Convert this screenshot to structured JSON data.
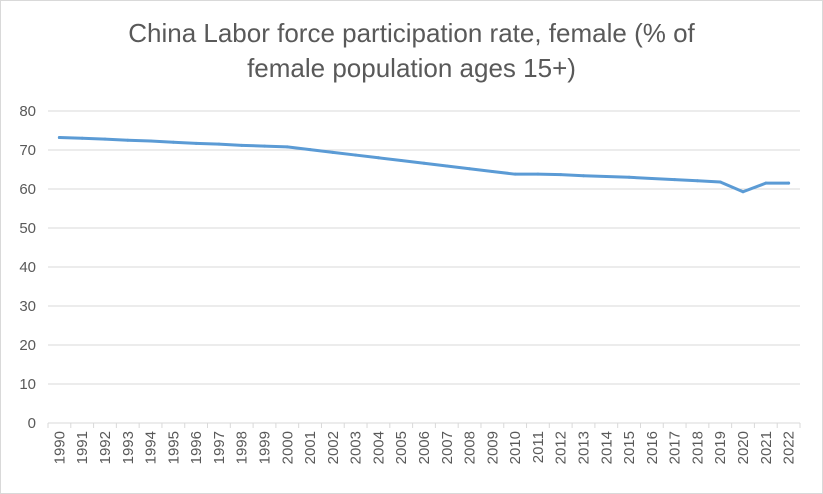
{
  "chart_data": {
    "type": "line",
    "title": "China Labor force participation rate, female (% of female population ages 15+)",
    "title_lines": [
      "China Labor force participation rate, female (% of",
      "female population ages 15+)"
    ],
    "xlabel": "",
    "ylabel": "",
    "ylim": [
      0,
      80
    ],
    "yticks": [
      0,
      10,
      20,
      30,
      40,
      50,
      60,
      70,
      80
    ],
    "grid": true,
    "legend": "none",
    "categories": [
      "1990",
      "1991",
      "1992",
      "1993",
      "1994",
      "1995",
      "1996",
      "1997",
      "1998",
      "1999",
      "2000",
      "2001",
      "2002",
      "2003",
      "2004",
      "2005",
      "2006",
      "2007",
      "2008",
      "2009",
      "2010",
      "2011",
      "2012",
      "2013",
      "2014",
      "2015",
      "2016",
      "2017",
      "2018",
      "2019",
      "2020",
      "2021",
      "2022"
    ],
    "series": [
      {
        "color": "#5b9bd5",
        "values": [
          73.2,
          73.0,
          72.8,
          72.5,
          72.3,
          72.0,
          71.7,
          71.5,
          71.2,
          71.0,
          70.8,
          70.1,
          69.4,
          68.7,
          68.0,
          67.3,
          66.6,
          65.9,
          65.2,
          64.5,
          63.8,
          63.8,
          63.7,
          63.4,
          63.2,
          63.0,
          62.7,
          62.4,
          62.1,
          61.8,
          59.3,
          61.5,
          61.5
        ]
      }
    ]
  },
  "colors": {
    "gridline": "#d9d9d9",
    "axis_text": "#595959",
    "line": "#5b9bd5"
  }
}
